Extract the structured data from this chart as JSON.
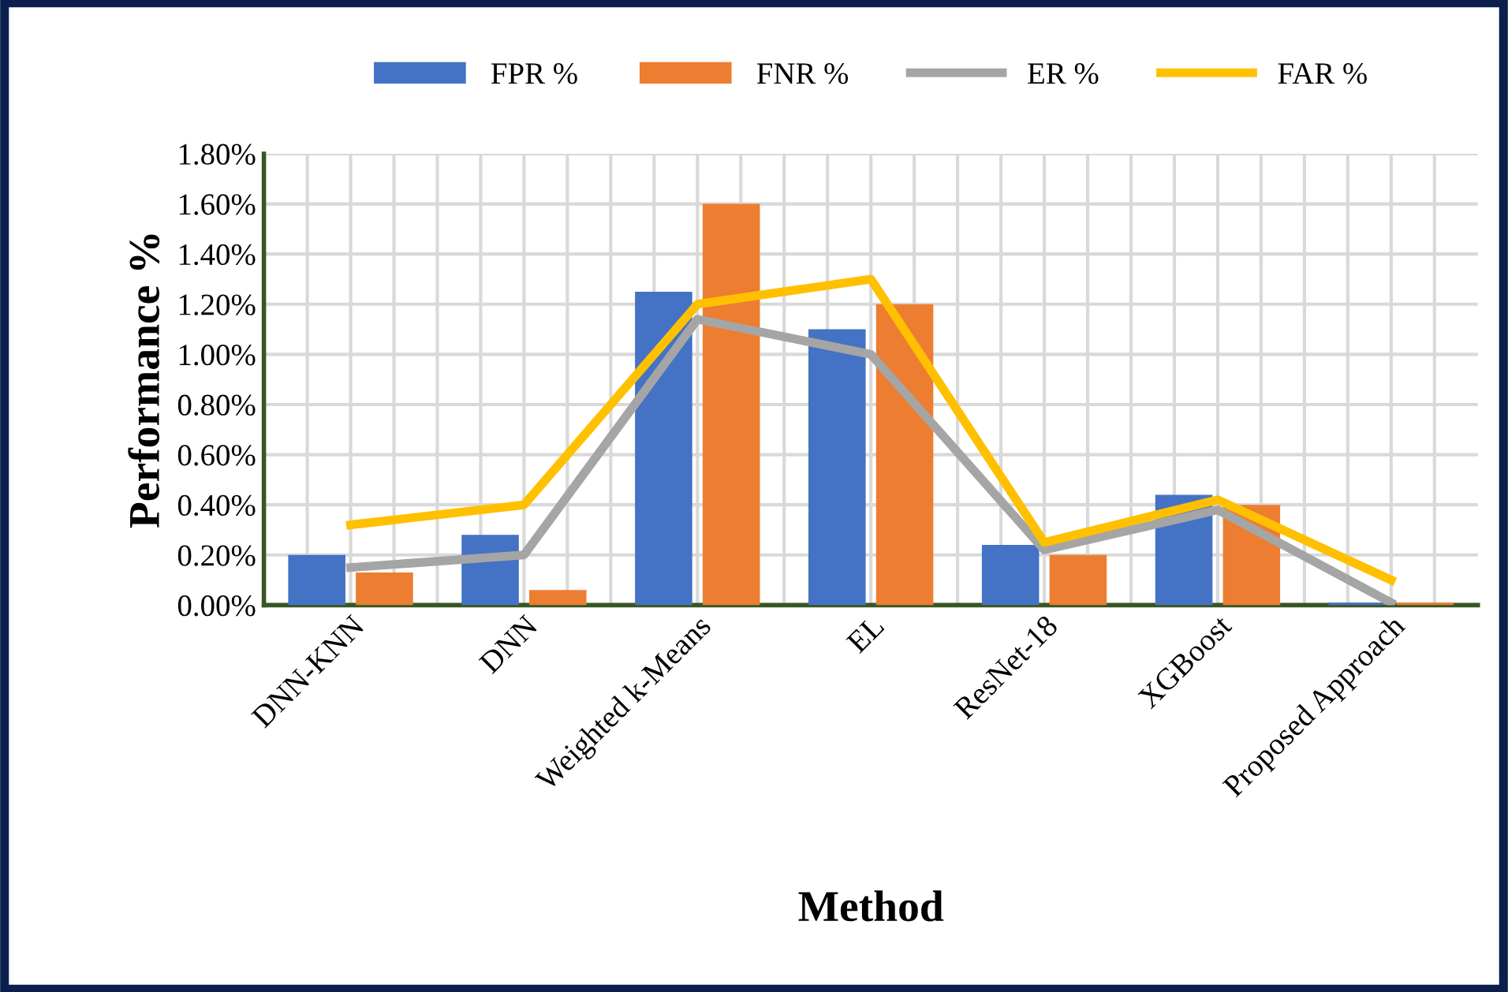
{
  "chart_data": {
    "type": "bar",
    "xlabel": "Method",
    "ylabel": "Performance %",
    "categories": [
      "DNN-KNN",
      "DNN",
      "Weighted k-Means",
      "EL",
      "ResNet-18",
      "XGBoost",
      "Proposed Approach"
    ],
    "series": [
      {
        "name": "FPR %",
        "color": "#4472c4",
        "values": [
          0.2,
          0.28,
          1.25,
          1.1,
          0.24,
          0.44,
          0.01
        ]
      },
      {
        "name": "FNR %",
        "color": "#ed7d31",
        "values": [
          0.13,
          0.06,
          1.6,
          1.2,
          0.2,
          0.4,
          0.01
        ]
      },
      {
        "name": "ER %",
        "type": "line",
        "color": "#a5a5a5",
        "values": [
          0.15,
          0.2,
          1.14,
          1.0,
          0.22,
          0.38,
          0.01
        ]
      },
      {
        "name": "FAR %",
        "type": "line",
        "color": "#ffc000",
        "values": [
          0.32,
          0.4,
          1.2,
          1.3,
          0.25,
          0.42,
          0.1
        ]
      }
    ],
    "ylim": [
      0,
      1.8
    ],
    "yticks": [
      {
        "value": 0,
        "label": "0.00%"
      },
      {
        "value": 0.2,
        "label": "0.20%"
      },
      {
        "value": 0.4,
        "label": "0.40%"
      },
      {
        "value": 0.6,
        "label": "0.60%"
      },
      {
        "value": 0.8,
        "label": "0.80%"
      },
      {
        "value": 1.0,
        "label": "1.00%"
      },
      {
        "value": 1.2,
        "label": "1.20%"
      },
      {
        "value": 1.4,
        "label": "1.40%"
      },
      {
        "value": 1.6,
        "label": "1.60%"
      },
      {
        "value": 1.8,
        "label": "1.80%"
      }
    ],
    "grid": true,
    "legend": "top",
    "marker": "none",
    "line_style": "solid"
  }
}
